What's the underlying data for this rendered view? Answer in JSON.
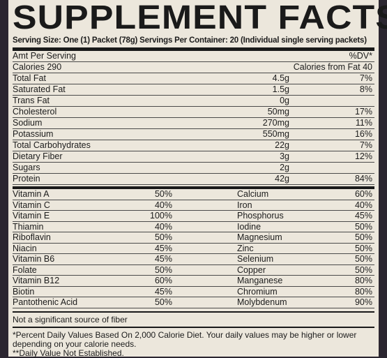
{
  "title": "SUPPLEMENT FACTS",
  "serving_line": "Serving Size: One (1) Packet (78g)  Servings Per Container: 20 (Individual single serving packets)",
  "amt_per_serving": "Amt Per Serving",
  "dv_header": "%DV*",
  "calories": "Calories 290",
  "calories_from_fat": "Calories from Fat 40",
  "nutrients": [
    {
      "name": "Total Fat",
      "amount": "4.5g",
      "dv": "7%"
    },
    {
      "name": "Saturated Fat",
      "amount": "1.5g",
      "dv": "8%"
    },
    {
      "name": "Trans Fat",
      "amount": "0g",
      "dv": ""
    },
    {
      "name": "Cholesterol",
      "amount": "50mg",
      "dv": "17%"
    },
    {
      "name": "Sodium",
      "amount": "270mg",
      "dv": "11%"
    },
    {
      "name": "Potassium",
      "amount": "550mg",
      "dv": "16%"
    },
    {
      "name": "Total Carbohydrates",
      "amount": "22g",
      "dv": "7%"
    },
    {
      "name": "Dietary Fiber",
      "amount": "3g",
      "dv": "12%"
    },
    {
      "name": "Sugars",
      "amount": "2g",
      "dv": ""
    },
    {
      "name": "Protein",
      "amount": "42g",
      "dv": "84%"
    }
  ],
  "vitamins": [
    {
      "left": "Vitamin A",
      "left_dv": "50%",
      "right": "Calcium",
      "right_dv": "60%"
    },
    {
      "left": "Vitamin C",
      "left_dv": "40%",
      "right": "Iron",
      "right_dv": "40%"
    },
    {
      "left": "Vitamin E",
      "left_dv": "100%",
      "right": "Phosphorus",
      "right_dv": "45%"
    },
    {
      "left": "Thiamin",
      "left_dv": "40%",
      "right": "Iodine",
      "right_dv": "50%"
    },
    {
      "left": "Riboflavin",
      "left_dv": "50%",
      "right": "Magnesium",
      "right_dv": "50%"
    },
    {
      "left": "Niacin",
      "left_dv": "45%",
      "right": "Zinc",
      "right_dv": "50%"
    },
    {
      "left": "Vitamin B6",
      "left_dv": "45%",
      "right": "Selenium",
      "right_dv": "50%"
    },
    {
      "left": "Folate",
      "left_dv": "50%",
      "right": "Copper",
      "right_dv": "50%"
    },
    {
      "left": "Vitamin B12",
      "left_dv": "60%",
      "right": "Manganese",
      "right_dv": "80%"
    },
    {
      "left": "Biotin",
      "left_dv": "45%",
      "right": "Chromium",
      "right_dv": "80%"
    },
    {
      "left": "Pantothenic Acid",
      "left_dv": "50%",
      "right": "Molybdenum",
      "right_dv": "90%"
    }
  ],
  "fiber_note": "Not a significant source of fiber",
  "footnote_1": "*Percent Daily Values Based On 2,000 Calorie Diet. Your daily values may be higher or lower depending on your calorie needs.",
  "footnote_2": "**Daily Value Not Established."
}
